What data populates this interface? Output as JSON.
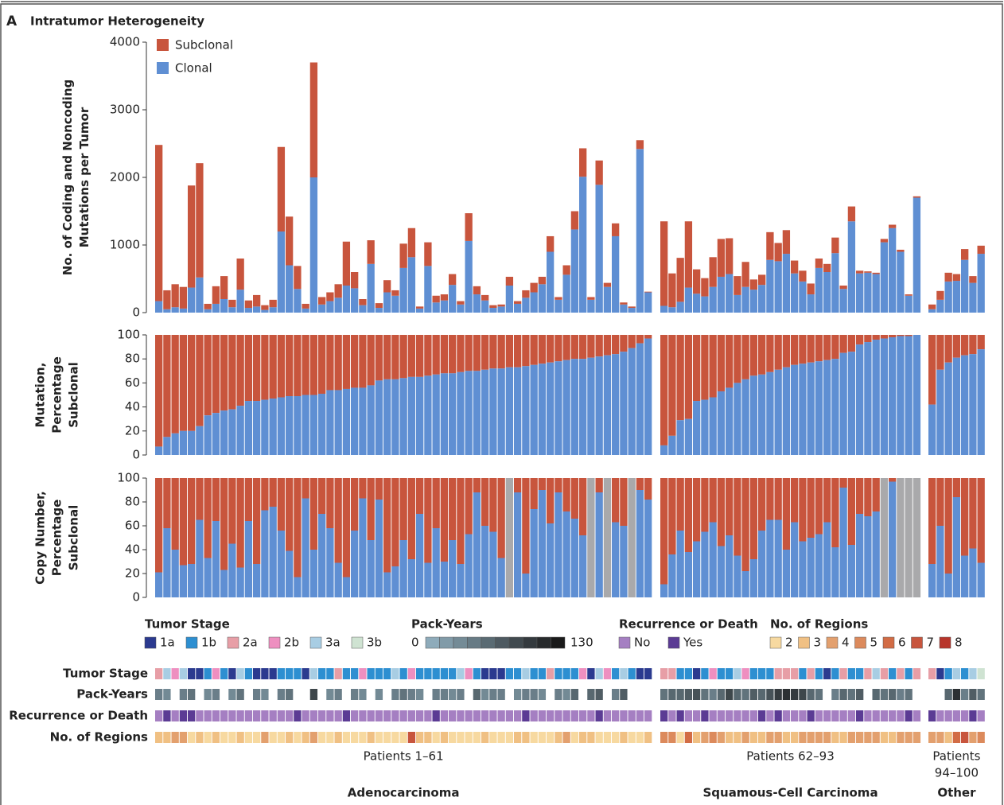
{
  "panel_label": "A",
  "title": "Intratumor Heterogeneity",
  "groups": [
    {
      "name": "Adenocarcinoma",
      "label": [
        "Patients 1–61"
      ]
    },
    {
      "name": "Squamous-Cell Carcinoma",
      "label": [
        "Patients 62–93"
      ]
    },
    {
      "name": "Other",
      "label": [
        "Patients",
        "94–100"
      ]
    }
  ],
  "chart_data": [
    {
      "type": "stacked-bar",
      "ylabel": [
        "No. of Coding and Noncoding",
        "Mutations per Tumor"
      ],
      "ylim": [
        0,
        4000
      ],
      "yticks": [
        0,
        1000,
        2000,
        3000,
        4000
      ],
      "legend": "top-left",
      "series": [
        {
          "name": "Subclonal",
          "color": "#c8553d",
          "values": [
            [
              2310,
              280,
              340,
              320,
              1510,
              1690,
              80,
              260,
              340,
              110,
              460,
              110,
              170,
              70,
              110,
              1250,
              720,
              340,
              70,
              1700,
              110,
              130,
              200,
              650,
              240,
              90,
              350,
              70,
              180,
              80,
              360,
              430,
              30,
              350,
              100,
              90,
              160,
              50,
              410,
              120,
              80,
              40,
              30,
              130,
              40,
              110,
              140,
              110,
              230,
              40,
              140,
              270,
              420,
              40,
              360,
              60,
              190,
              30,
              20,
              130,
              10
            ],
            [
              1250,
              500,
              650,
              980,
              360,
              270,
              440,
              560,
              530,
              280,
              370,
              150,
              150,
              410,
              270,
              350,
              190,
              160,
              160,
              140,
              120,
              230,
              50,
              220,
              40,
              20,
              20,
              50,
              50,
              30,
              20,
              20
            ],
            [
              70,
              130,
              130,
              100,
              160,
              100,
              120
            ]
          ]
        },
        {
          "name": "Clonal",
          "color": "#5f8fd3",
          "values": [
            [
              170,
              50,
              80,
              60,
              370,
              520,
              50,
              130,
              200,
              80,
              340,
              70,
              90,
              40,
              80,
              1200,
              700,
              350,
              60,
              2000,
              120,
              170,
              220,
              400,
              360,
              110,
              720,
              70,
              300,
              250,
              660,
              820,
              60,
              690,
              150,
              180,
              410,
              120,
              1060,
              270,
              180,
              70,
              90,
              400,
              130,
              220,
              300,
              420,
              900,
              190,
              560,
              1230,
              2010,
              190,
              1890,
              380,
              1130,
              120,
              70,
              2420,
              300
            ],
            [
              100,
              80,
              160,
              370,
              280,
              240,
              380,
              530,
              570,
              260,
              380,
              340,
              410,
              780,
              760,
              870,
              580,
              460,
              270,
              660,
              600,
              880,
              350,
              1350,
              580,
              590,
              570,
              1040,
              1250,
              900,
              250,
              1700
            ],
            [
              50,
              190,
              460,
              470,
              780,
              440,
              870
            ]
          ]
        }
      ]
    },
    {
      "type": "percent-bar",
      "ylabel": [
        "Mutation,",
        "Percentage",
        "Subclonal"
      ],
      "ylim": [
        0,
        100
      ],
      "yticks": [
        0,
        20,
        40,
        60,
        80,
        100
      ],
      "color": "#5f8fd3",
      "rest_color": "#c8553d",
      "values": [
        [
          7,
          15,
          18,
          20,
          20,
          24,
          33,
          35,
          37,
          38,
          41,
          45,
          45,
          46,
          47,
          48,
          49,
          49,
          50,
          50,
          51,
          54,
          54,
          55,
          56,
          56,
          58,
          62,
          63,
          63,
          64,
          65,
          65,
          66,
          67,
          68,
          68,
          69,
          70,
          70,
          71,
          72,
          72,
          73,
          73,
          74,
          75,
          76,
          77,
          78,
          79,
          80,
          80,
          81,
          82,
          83,
          84,
          86,
          89,
          93,
          97
        ],
        [
          8,
          16,
          29,
          30,
          45,
          46,
          48,
          53,
          56,
          60,
          63,
          66,
          67,
          69,
          71,
          73,
          75,
          76,
          77,
          78,
          79,
          80,
          85,
          86,
          92,
          94,
          96,
          97,
          98,
          99,
          99,
          100
        ],
        [
          42,
          71,
          77,
          81,
          83,
          84,
          88
        ]
      ]
    },
    {
      "type": "percent-bar",
      "ylabel": [
        "Copy Number,",
        "Percentage",
        "Subclonal"
      ],
      "ylim": [
        0,
        100
      ],
      "yticks": [
        0,
        20,
        40,
        60,
        80,
        100
      ],
      "color": "#5f8fd3",
      "rest_color": "#c8553d",
      "missing_color": "#a9a9ab",
      "values": [
        [
          21,
          58,
          40,
          27,
          28,
          65,
          33,
          64,
          23,
          45,
          25,
          64,
          28,
          73,
          76,
          56,
          39,
          17,
          83,
          40,
          70,
          58,
          29,
          17,
          56,
          83,
          48,
          82,
          21,
          26,
          48,
          32,
          70,
          29,
          58,
          30,
          48,
          28,
          53,
          88,
          60,
          55,
          33,
          null,
          88,
          20,
          74,
          90,
          62,
          88,
          72,
          66,
          52,
          null,
          88,
          null,
          63,
          60,
          null,
          90,
          82
        ],
        [
          11,
          36,
          56,
          38,
          47,
          55,
          63,
          43,
          52,
          35,
          22,
          32,
          56,
          65,
          65,
          40,
          63,
          47,
          50,
          53,
          63,
          42,
          92,
          44,
          70,
          68,
          72,
          null,
          97,
          null,
          null,
          null
        ],
        [
          28,
          60,
          20,
          84,
          35,
          41,
          29
        ]
      ]
    }
  ],
  "tracks": [
    {
      "name": "Tumor Stage",
      "type": "categorical",
      "categories": [
        "1a",
        "1b",
        "2a",
        "2b",
        "3a",
        "3b"
      ],
      "colors": [
        "#2b3a8f",
        "#2d8fd1",
        "#e79ea6",
        "#ee8fc0",
        "#a8cde3",
        "#cfe3d2"
      ],
      "values": [
        [
          "2a",
          "3a",
          "2b",
          "3a",
          "1a",
          "1a",
          "1b",
          "2b",
          "1b",
          "1a",
          "3a",
          "1b",
          "1a",
          "1a",
          "1a",
          "1b",
          "1b",
          "1b",
          "1a",
          "3a",
          "1b",
          "1b",
          "2a",
          "1b",
          "1b",
          "2b",
          "1b",
          "1b",
          "1b",
          "3a",
          "1b",
          "2b",
          "1b",
          "1b",
          "1b",
          "1b",
          "1b",
          "3a",
          "2b",
          "1b",
          "1a",
          "1a",
          "1a",
          "1b",
          "1b",
          "3a",
          "1b",
          "1b",
          "2a",
          "1b",
          "1b",
          "1b",
          "2b",
          "1a",
          "3a",
          "2b",
          "1b",
          "3a",
          "1b",
          "1a",
          "1a"
        ],
        [
          "2a",
          "2a",
          "1b",
          "1b",
          "1a",
          "1b",
          "2b",
          "1b",
          "1b",
          "3a",
          "2b",
          "1b",
          "1b",
          "1b",
          "2a",
          "2a",
          "2a",
          "1b",
          "2a",
          "1b",
          "1a",
          "1b",
          "2a",
          "1b",
          "1b",
          "2a",
          "3a",
          "2a",
          "1b",
          "2a",
          "1b",
          "2a"
        ],
        [
          "2a",
          "1a",
          "1b",
          "3a",
          "1b",
          "3a",
          "3b"
        ]
      ]
    },
    {
      "name": "Pack-Years",
      "type": "gradient",
      "lim": [
        0,
        130
      ],
      "colors": [
        "#8eabba",
        "#1a1a1a"
      ],
      "values": [
        [
          40,
          30,
          null,
          40,
          50,
          null,
          30,
          40,
          null,
          30,
          50,
          null,
          40,
          30,
          null,
          40,
          50,
          null,
          null,
          90,
          null,
          30,
          40,
          null,
          40,
          30,
          null,
          30,
          null,
          40,
          50,
          40,
          30,
          null,
          40,
          40,
          30,
          40,
          null,
          60,
          30,
          40,
          40,
          null,
          30,
          40,
          40,
          30,
          null,
          40,
          30,
          60,
          null,
          60,
          70,
          null,
          40,
          70,
          null,
          null,
          null
        ],
        [
          50,
          60,
          60,
          70,
          80,
          50,
          40,
          60,
          90,
          60,
          50,
          70,
          60,
          80,
          100,
          110,
          100,
          90,
          60,
          50,
          null,
          40,
          60,
          50,
          70,
          null,
          60,
          50,
          60,
          40,
          50,
          null
        ],
        [
          null,
          null,
          60,
          110,
          40,
          70,
          50
        ]
      ]
    },
    {
      "name": "Recurrence or Death",
      "type": "categorical",
      "categories": [
        "No",
        "Yes"
      ],
      "colors": [
        "#a57fc2",
        "#5b3b94"
      ],
      "values": [
        [
          "No",
          "Yes",
          "No",
          "Yes",
          "Yes",
          "No",
          "No",
          "No",
          "No",
          "No",
          "No",
          "No",
          "No",
          "No",
          "No",
          "No",
          "No",
          "Yes",
          "No",
          "No",
          "No",
          "No",
          "No",
          "Yes",
          "No",
          "No",
          "No",
          "No",
          "No",
          "No",
          "No",
          "No",
          "No",
          "No",
          "Yes",
          "No",
          "No",
          "No",
          "No",
          "No",
          "No",
          "No",
          "No",
          "No",
          "No",
          "Yes",
          "No",
          "No",
          "No",
          "No",
          "No",
          "No",
          "No",
          "No",
          "Yes",
          "No",
          "No",
          "No",
          "No",
          "No",
          "No"
        ],
        [
          "Yes",
          "No",
          "Yes",
          "No",
          "No",
          "Yes",
          "No",
          "No",
          "No",
          "No",
          "No",
          "No",
          "Yes",
          "No",
          "Yes",
          "No",
          "No",
          "No",
          "Yes",
          "No",
          "No",
          "No",
          "No",
          "No",
          "Yes",
          "No",
          "No",
          "No",
          "No",
          "No",
          "Yes",
          "No"
        ],
        [
          "Yes",
          "No",
          "No",
          "No",
          "No",
          "Yes",
          "No"
        ]
      ]
    },
    {
      "name": "No. of Regions",
      "type": "categorical",
      "categories": [
        2,
        3,
        4,
        5,
        6,
        7,
        8
      ],
      "colors": [
        "#f7d9a0",
        "#f0c083",
        "#e3a06e",
        "#dc8a5c",
        "#d26c45",
        "#c8553d",
        "#b8352b"
      ],
      "values": [
        [
          3,
          3,
          4,
          4,
          2,
          3,
          2,
          3,
          2,
          2,
          3,
          2,
          2,
          4,
          2,
          2,
          3,
          2,
          3,
          4,
          2,
          2,
          3,
          2,
          2,
          2,
          3,
          2,
          2,
          2,
          2,
          7,
          3,
          3,
          2,
          3,
          2,
          2,
          2,
          2,
          3,
          2,
          2,
          2,
          3,
          3,
          2,
          2,
          2,
          3,
          4,
          2,
          3,
          3,
          2,
          2,
          2,
          3,
          2,
          2,
          3
        ],
        [
          5,
          5,
          2,
          6,
          3,
          4,
          5,
          4,
          3,
          3,
          4,
          3,
          3,
          4,
          4,
          3,
          3,
          4,
          4,
          4,
          4,
          3,
          3,
          4,
          4,
          4,
          4,
          3,
          3,
          4,
          4,
          4
        ],
        [
          4,
          4,
          3,
          6,
          7,
          4,
          5
        ]
      ]
    }
  ]
}
